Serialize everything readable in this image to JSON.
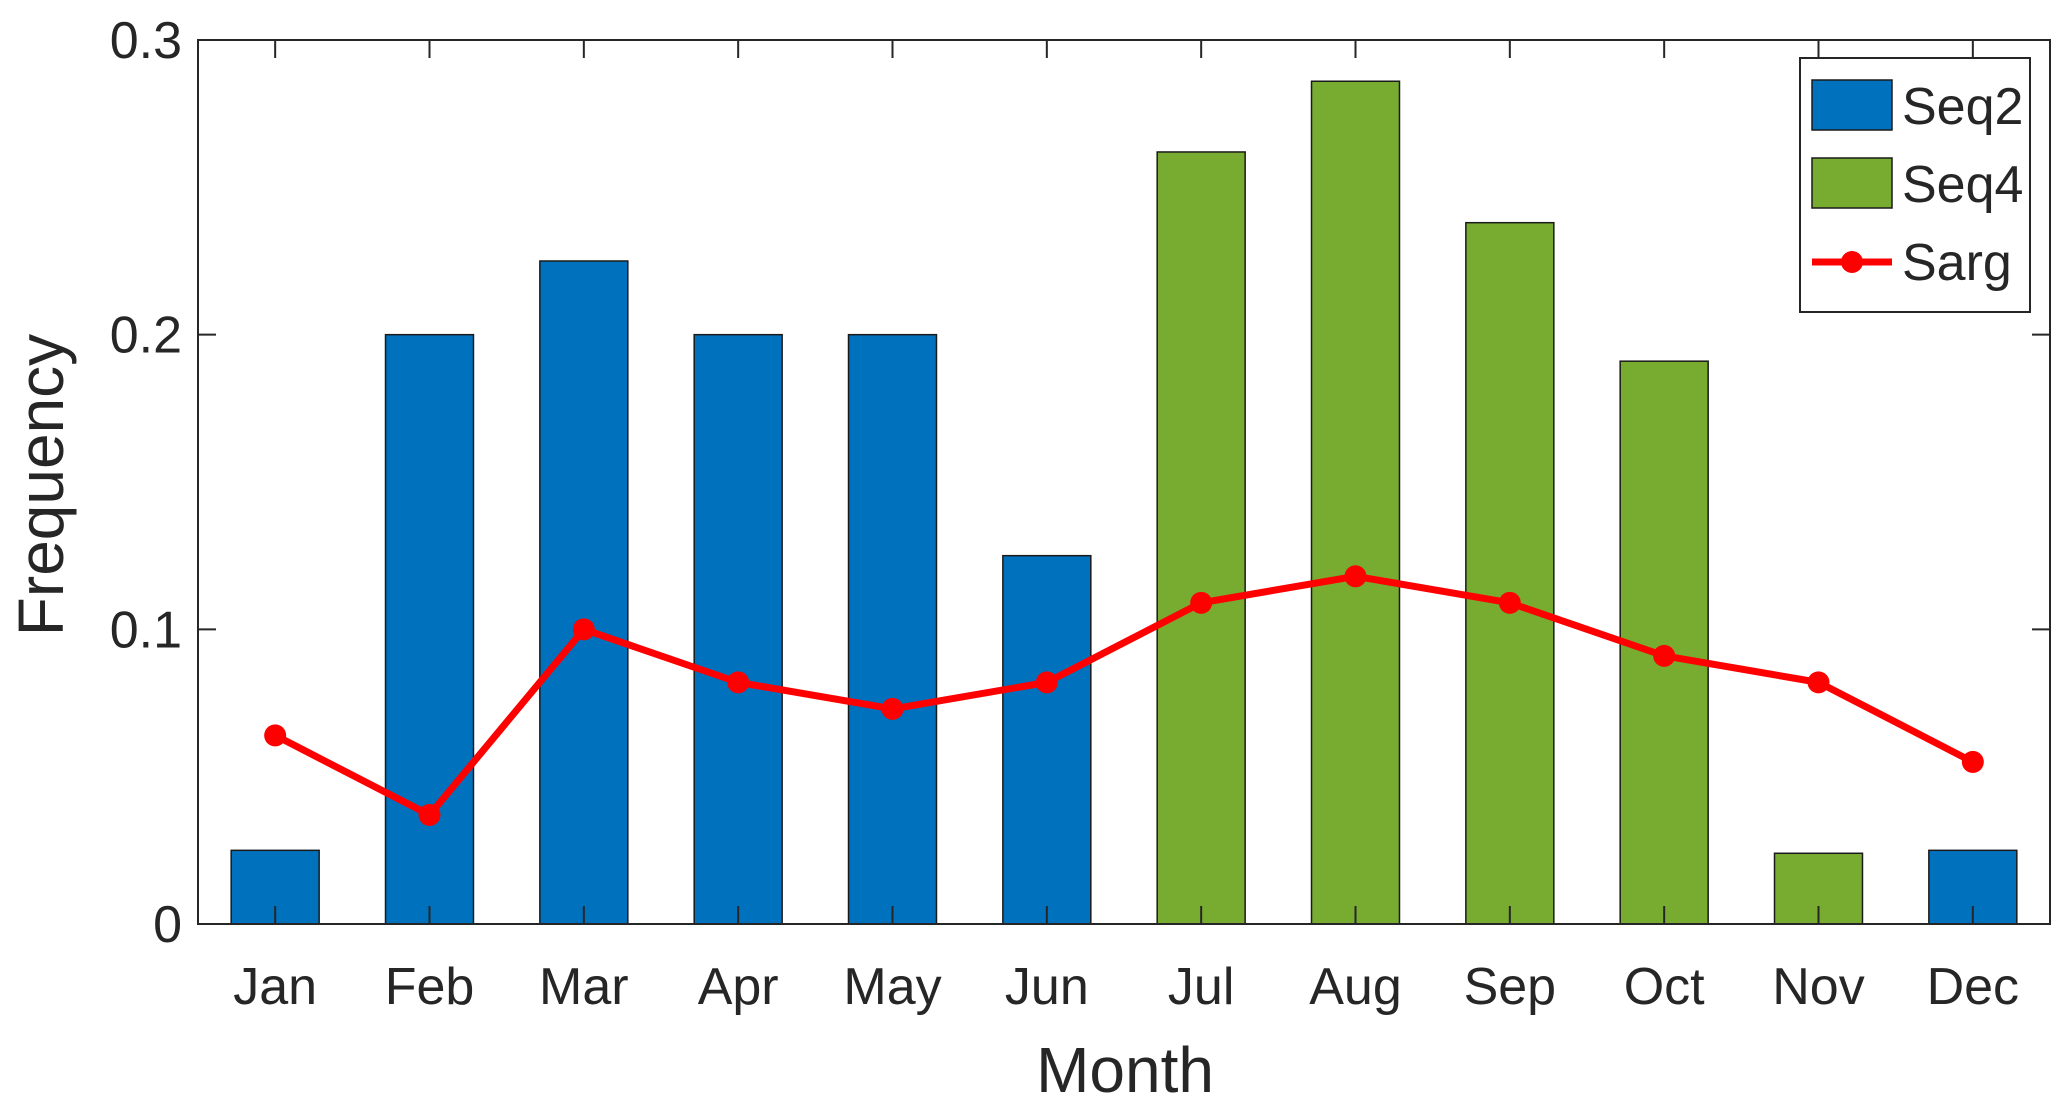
{
  "chart_data": {
    "type": "bar",
    "title": "",
    "xlabel": "Month",
    "ylabel": "Frequency",
    "ylim": [
      0,
      0.3
    ],
    "yticks": [
      0,
      0.1,
      0.2,
      0.3
    ],
    "ytick_labels": [
      "0",
      "0.1",
      "0.2",
      "0.3"
    ],
    "categories": [
      "Jan",
      "Feb",
      "Mar",
      "Apr",
      "May",
      "Jun",
      "Jul",
      "Aug",
      "Sep",
      "Oct",
      "Nov",
      "Dec"
    ],
    "grid": false,
    "legend_position": "top-right",
    "series": [
      {
        "name": "Seq2",
        "type": "bar",
        "color": "#0072BD",
        "values": [
          0.025,
          0.2,
          0.225,
          0.2,
          0.2,
          0.125,
          null,
          null,
          null,
          null,
          null,
          0.025
        ]
      },
      {
        "name": "Seq4",
        "type": "bar",
        "color": "#77AC30",
        "values": [
          null,
          null,
          null,
          null,
          null,
          null,
          0.262,
          0.286,
          0.238,
          0.191,
          0.024,
          null
        ]
      },
      {
        "name": "Sarg",
        "type": "line",
        "color": "#FF0000",
        "marker": "circle",
        "values": [
          0.064,
          0.037,
          0.1,
          0.082,
          0.073,
          0.082,
          0.109,
          0.118,
          0.109,
          0.091,
          0.082,
          0.055
        ]
      }
    ]
  }
}
